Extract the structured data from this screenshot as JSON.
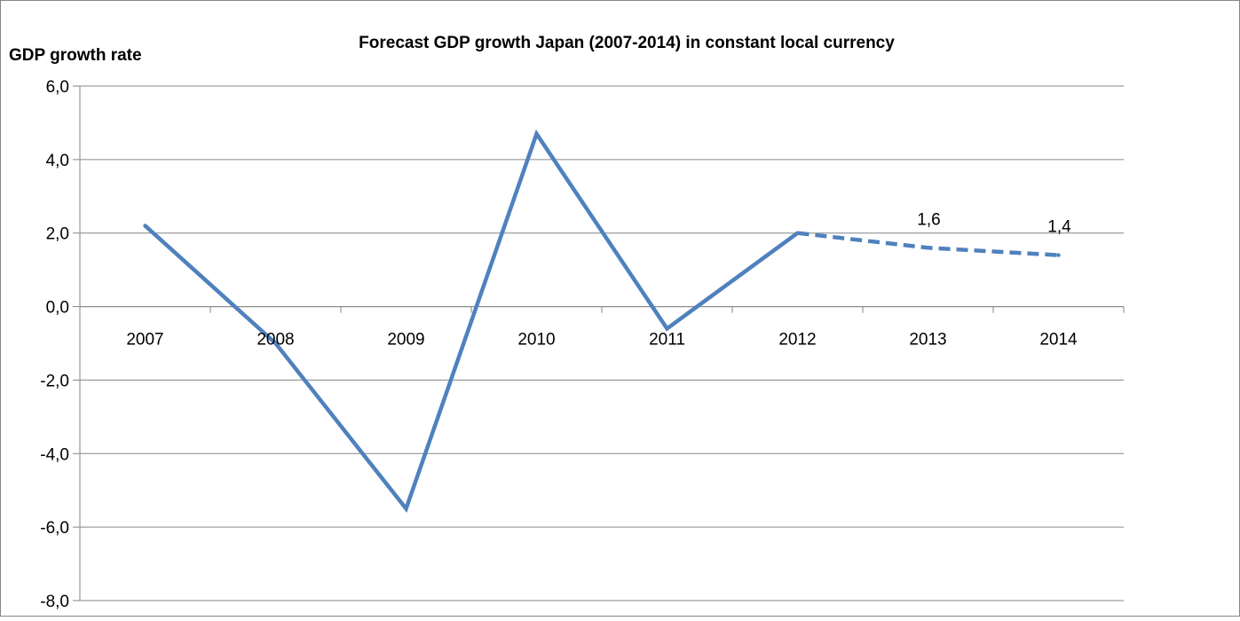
{
  "chart_data": {
    "type": "line",
    "title": "Forecast GDP growth Japan (2007-2014) in constant local currency",
    "ylabel": "GDP growth rate",
    "xlabel": "",
    "categories": [
      "2007",
      "2008",
      "2009",
      "2010",
      "2011",
      "2012",
      "2013",
      "2014"
    ],
    "series": [
      {
        "values": [
          2.2,
          -1.0,
          -5.5,
          4.7,
          -0.6,
          2.0,
          1.6,
          1.4
        ],
        "color": "#4F81BD",
        "line_style": "solid through 2012, dashed forecast for 2013-2014"
      }
    ],
    "data_labels": [
      {
        "category": "2013",
        "text": "1,6"
      },
      {
        "category": "2014",
        "text": "1,4"
      }
    ],
    "ylim": [
      -8,
      6
    ],
    "yticks": [
      "-8,0",
      "-6,0",
      "-4,0",
      "-2,0",
      "0,0",
      "2,0",
      "4,0",
      "6,0"
    ],
    "grid": true,
    "legend": "none"
  }
}
